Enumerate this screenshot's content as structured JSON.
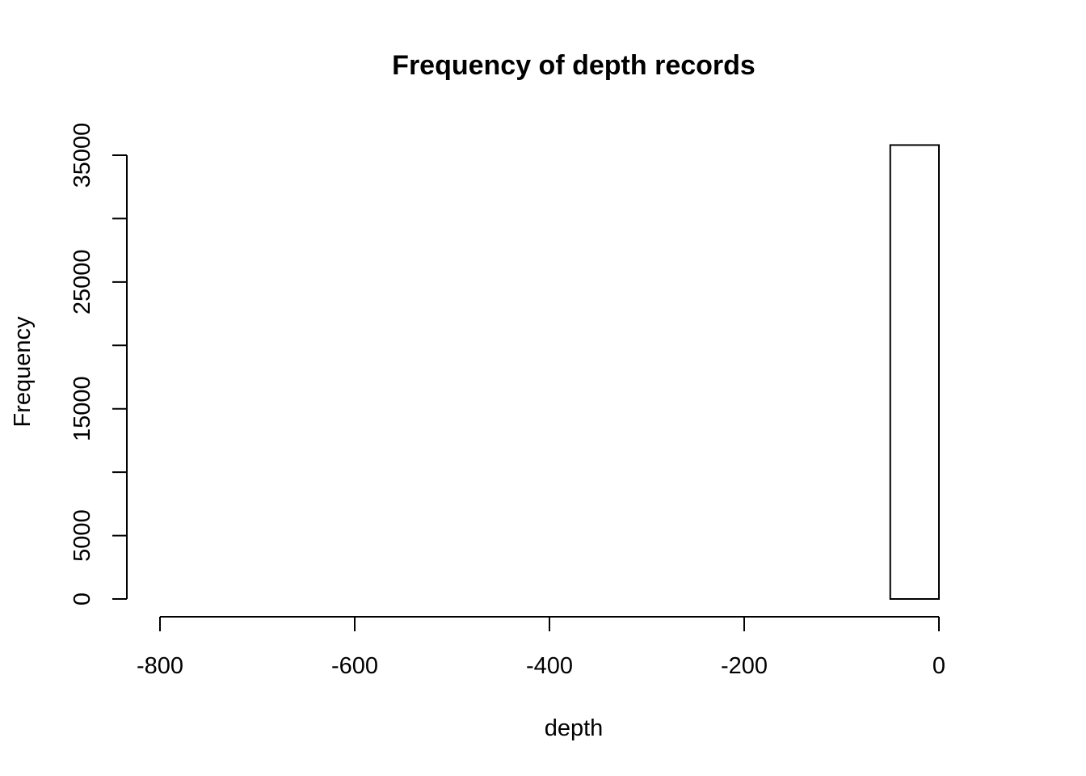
{
  "chart_data": {
    "type": "bar",
    "title": "Frequency of depth records",
    "xlabel": "depth",
    "ylabel": "Frequency",
    "xlim": [
      -800,
      0
    ],
    "ylim": [
      0,
      35000
    ],
    "x_ticks": [
      "-800",
      "-600",
      "-400",
      "-200",
      "0"
    ],
    "y_ticks": [
      "0",
      "5000",
      "15000",
      "25000",
      "35000"
    ],
    "y_minor_ticks": [
      10000,
      20000,
      30000
    ],
    "bins": [
      {
        "x0": -800,
        "x1": -750,
        "value": 0
      },
      {
        "x0": -750,
        "x1": -700,
        "value": 0
      },
      {
        "x0": -700,
        "x1": -650,
        "value": 0
      },
      {
        "x0": -650,
        "x1": -600,
        "value": 0
      },
      {
        "x0": -600,
        "x1": -550,
        "value": 0
      },
      {
        "x0": -550,
        "x1": -500,
        "value": 0
      },
      {
        "x0": -500,
        "x1": -450,
        "value": 0
      },
      {
        "x0": -450,
        "x1": -400,
        "value": 0
      },
      {
        "x0": -400,
        "x1": -350,
        "value": 0
      },
      {
        "x0": -350,
        "x1": -300,
        "value": 0
      },
      {
        "x0": -300,
        "x1": -250,
        "value": 0
      },
      {
        "x0": -250,
        "x1": -200,
        "value": 0
      },
      {
        "x0": -200,
        "x1": -150,
        "value": 0
      },
      {
        "x0": -150,
        "x1": -100,
        "value": 0
      },
      {
        "x0": -100,
        "x1": -50,
        "value": 0
      },
      {
        "x0": -50,
        "x1": 0,
        "value": 35800
      }
    ],
    "grid": false,
    "legend": "none"
  }
}
